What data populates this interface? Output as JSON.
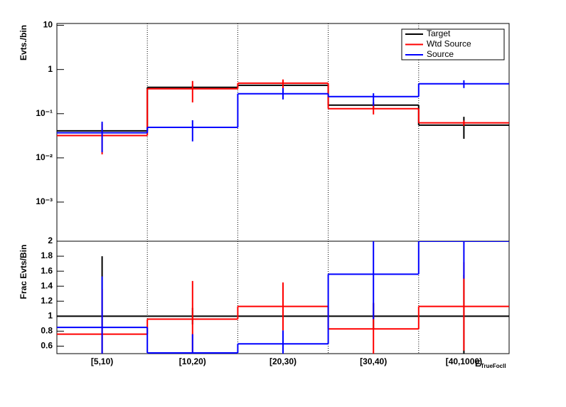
{
  "chart_data": [
    {
      "type": "step",
      "y_label": "Evts./bin",
      "log_y": true,
      "xgrid": true,
      "ylim": [
        0.00013,
        11
      ],
      "yticks": [
        {
          "value": 0.001,
          "label": "10⁻³"
        },
        {
          "value": 0.01,
          "label": "10⁻²"
        },
        {
          "value": 0.1,
          "label": "10⁻¹"
        },
        1,
        10
      ],
      "legend": "top-right",
      "series": [
        {
          "name": "Target",
          "color": "#000000",
          "values": [
            0.041,
            0.395,
            0.44,
            0.156,
            0.055
          ],
          "err_low": [
            0.005,
            0.045,
            0.04,
            0.026,
            0.028
          ],
          "err_high": [
            0.005,
            0.045,
            0.04,
            0.024,
            0.03
          ]
        },
        {
          "name": "Wtd Source",
          "color": "#ff0000",
          "values": [
            0.032,
            0.367,
            0.49,
            0.13,
            0.062
          ],
          "err_low": [
            0.02,
            0.187,
            0.272,
            0.034,
            0.009
          ],
          "err_high": [
            0.028,
            0.183,
            0.105,
            0.038,
            0.008
          ]
        },
        {
          "name": "Source",
          "color": "#0000ff",
          "values": [
            0.037,
            0.049,
            0.283,
            0.244,
            0.475
          ],
          "err_low": [
            0.0236,
            0.0254,
            0.073,
            0.094,
            0.095
          ],
          "err_high": [
            0.029,
            0.022,
            0.097,
            0.046,
            0.095
          ]
        }
      ]
    },
    {
      "type": "step",
      "y_label": "Frac Evts/Bin",
      "log_y": false,
      "xgrid": true,
      "categories": [
        "[5,10)",
        "[10,20)",
        "[20,30)",
        "[30,40)",
        "[40,1000)"
      ],
      "x_label": {
        "main": "E",
        "sub": "TrueFocll"
      },
      "ylim": [
        0.5,
        2.0
      ],
      "yticks": [
        0.6,
        0.8,
        1,
        1.2,
        1.4,
        1.6,
        1.8,
        2
      ],
      "series": [
        {
          "color": "#000000",
          "values": [
            1,
            1,
            1,
            1,
            1
          ],
          "err_low": [
            0.8,
            0.11,
            0.09,
            0.17,
            0.55
          ],
          "err_high": [
            0.8,
            0.11,
            0.09,
            0.17,
            0.55
          ]
        },
        {
          "color": "#ff0000",
          "values": [
            0.76,
            0.96,
            1.13,
            0.83,
            1.13
          ],
          "err_low": [
            0.6,
            0.51,
            0.32,
            0.35,
            0.59
          ],
          "err_high": [
            0.6,
            0.51,
            0.32,
            0.35,
            0.59
          ]
        },
        {
          "color": "#0000ff",
          "values": [
            0.85,
            0.51,
            0.63,
            1.56,
            2.0
          ],
          "err_low": [
            0.68,
            0.25,
            0.18,
            0.6,
            0.5
          ],
          "err_high": [
            0.68,
            0.25,
            0.18,
            0.6,
            0.5
          ]
        }
      ]
    }
  ]
}
